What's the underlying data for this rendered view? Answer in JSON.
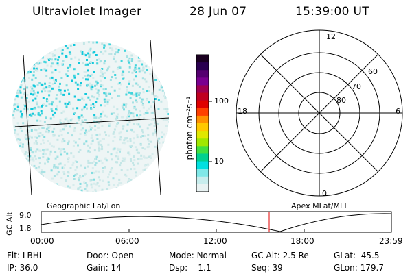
{
  "header": {
    "title": "Ultraviolet Imager",
    "date": "28 Jun 07",
    "time": "15:39:00 UT"
  },
  "colorbar": {
    "unit_label": "photon cm⁻²s⁻¹",
    "ticks": [
      "100",
      "10"
    ],
    "colors": [
      "#1a0020",
      "#2a0050",
      "#550070",
      "#7a0090",
      "#a00050",
      "#c00020",
      "#e00000",
      "#ff4000",
      "#ff9000",
      "#ffc800",
      "#e0e800",
      "#a0e800",
      "#40e040",
      "#00d090",
      "#00e0e0",
      "#80e8e8",
      "#c8eded",
      "#e8f2f2"
    ]
  },
  "polar": {
    "mlt_labels": {
      "top": "12",
      "left": "18",
      "right": "6",
      "bottom": "0"
    },
    "lat_labels": [
      "60",
      "70",
      "80"
    ]
  },
  "gc_alt_plot": {
    "ylabel": "GC Alt",
    "yticks": [
      "9.0",
      "1.8"
    ],
    "left_caption": "Geographic Lat/Lon",
    "right_caption": "Apex MLat/MLT",
    "xticks": [
      "00:00",
      "06:00",
      "12:00",
      "18:00",
      "23:59"
    ],
    "marker_color": "#e00000"
  },
  "status": {
    "row1": [
      {
        "label": "Flt:",
        "value": "LBHL"
      },
      {
        "label": "Door:",
        "value": "Open"
      },
      {
        "label": "Mode:",
        "value": "Normal"
      },
      {
        "label": "GC Alt:",
        "value": "2.5 Re"
      },
      {
        "label": "GLat:",
        "value": "45.5"
      }
    ],
    "row2": [
      {
        "label": "IP:",
        "value": "36.0"
      },
      {
        "label": "Gain:",
        "value": "14"
      },
      {
        "label": "Dsp:",
        "value": "1.1"
      },
      {
        "label": "Seq:",
        "value": "39"
      },
      {
        "label": "GLon:",
        "value": "179.7"
      }
    ]
  }
}
